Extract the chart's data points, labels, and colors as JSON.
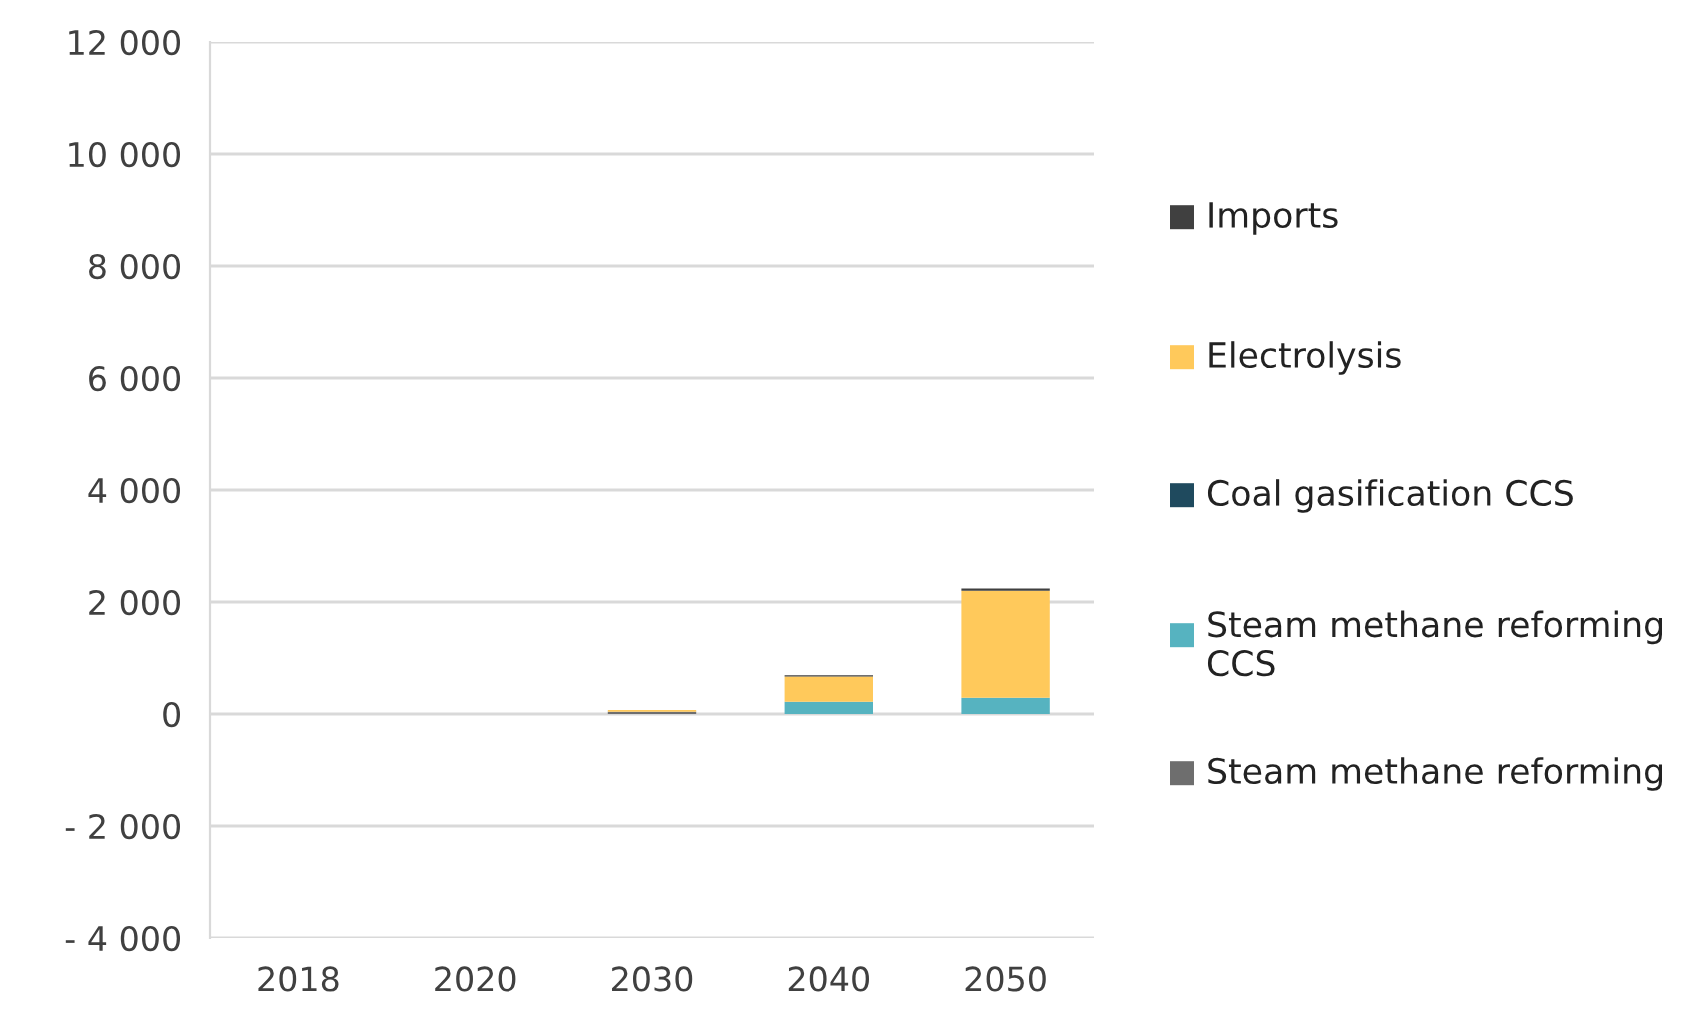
{
  "chart_data": {
    "type": "bar",
    "stacked": true,
    "categories": [
      "2018",
      "2020",
      "2030",
      "2040",
      "2050"
    ],
    "series": [
      {
        "name": "Steam methane reforming",
        "color": "#6e6e6e",
        "values": [
          0,
          0,
          40,
          0,
          0
        ]
      },
      {
        "name": "Steam methane reforming CCS",
        "color": "#56b3c0",
        "values": [
          0,
          0,
          0,
          220,
          290
        ]
      },
      {
        "name": "Coal gasification CCS",
        "color": "#1f4a5e",
        "values": [
          0,
          0,
          0,
          0,
          0
        ]
      },
      {
        "name": "Electrolysis",
        "color": "#ffc95b",
        "values": [
          0,
          0,
          30,
          450,
          1910
        ]
      },
      {
        "name": "Imports",
        "color": "#404040",
        "values": [
          0,
          0,
          0,
          20,
          40
        ]
      }
    ],
    "ylim": [
      -4000,
      12000
    ],
    "yticks": [
      {
        "value": -4000,
        "label": "- 4 000"
      },
      {
        "value": -2000,
        "label": "- 2 000"
      },
      {
        "value": 0,
        "label": "0"
      },
      {
        "value": 2000,
        "label": "2 000"
      },
      {
        "value": 4000,
        "label": "4 000"
      },
      {
        "value": 6000,
        "label": "6 000"
      },
      {
        "value": 8000,
        "label": "8 000"
      },
      {
        "value": 10000,
        "label": "10 000"
      },
      {
        "value": 12000,
        "label": "12 000"
      }
    ],
    "grid": "y",
    "legend": "right"
  }
}
